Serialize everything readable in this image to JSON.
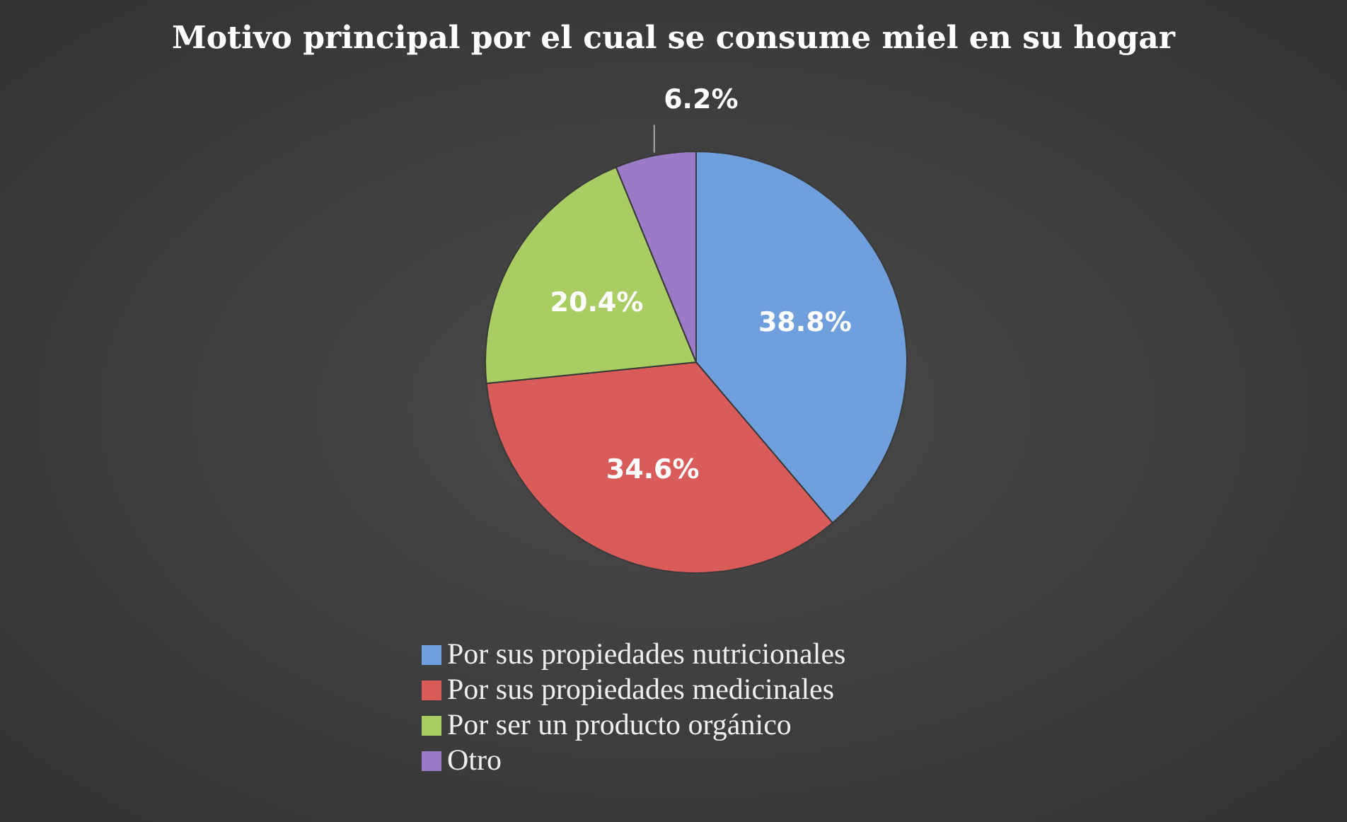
{
  "chart_data": {
    "type": "pie",
    "title": "Motivo principal por el cual se consume miel en su hogar",
    "categories": [
      "Por sus propiedades nutricionales",
      "Por sus propiedades medicinales",
      "Por ser un producto orgánico",
      "Otro"
    ],
    "values": [
      38.8,
      34.6,
      20.4,
      6.2
    ],
    "colors": [
      "#6f9fdc",
      "#d95c5a",
      "#a9cc63",
      "#9b7bc8"
    ],
    "value_labels": [
      "38.8%",
      "34.6%",
      "20.4%",
      "6.2%"
    ],
    "legend": "bottom"
  }
}
